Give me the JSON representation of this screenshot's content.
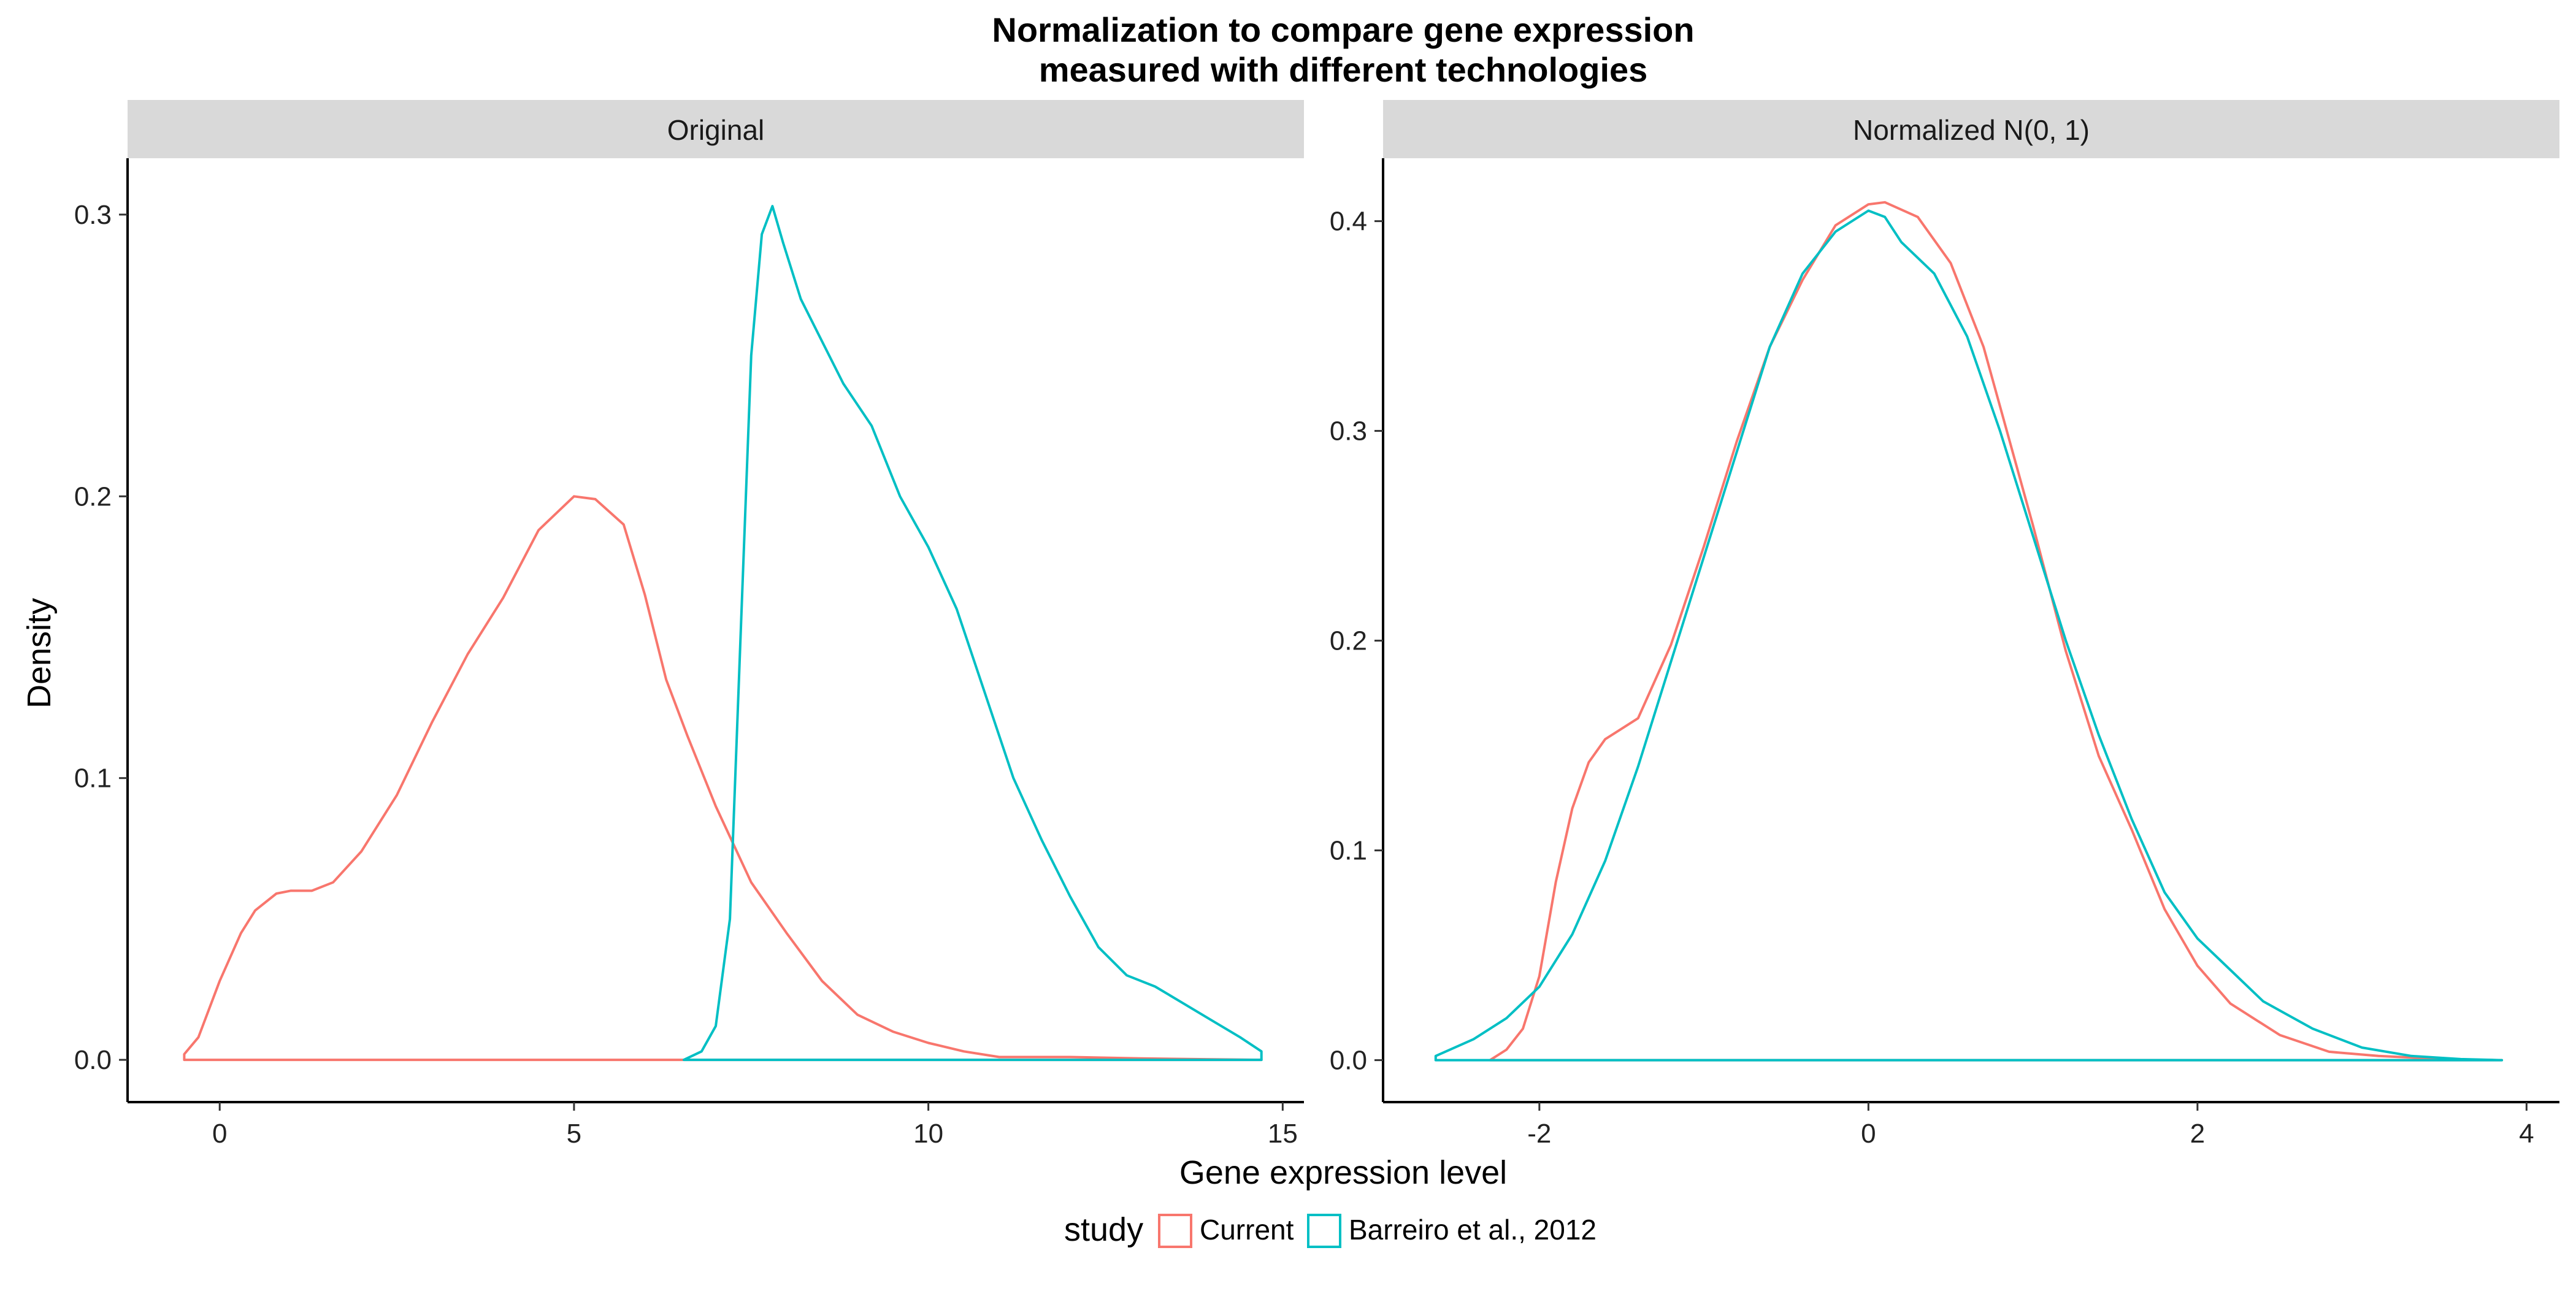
{
  "chart_data": {
    "type": "line",
    "title": "Normalization to compare gene expression",
    "title_line2": "measured with different technologies",
    "xlabel": "Gene expression level",
    "ylabel": "Density",
    "grid": false,
    "legend": {
      "placement": "bottom",
      "title": "study",
      "entries": [
        {
          "name": "Current",
          "color": "#F8766D"
        },
        {
          "name": "Barreiro et al., 2012",
          "color": "#00BFC4"
        }
      ]
    },
    "panels": [
      {
        "strip": "Original",
        "xlim": [
          -1.3,
          15.3
        ],
        "ylim": [
          -0.015,
          0.32
        ],
        "x_ticks": [
          0,
          5,
          10,
          15
        ],
        "x_tick_labels": [
          "0",
          "5",
          "10",
          "15"
        ],
        "y_ticks": [
          0,
          0.1,
          0.2,
          0.3
        ],
        "y_tick_labels": [
          "0.0",
          "0.1",
          "0.2",
          "0.3"
        ],
        "series": [
          {
            "name": "Current",
            "color": "#F8766D",
            "x": [
              -0.5,
              -0.3,
              0,
              0.3,
              0.5,
              0.8,
              1.0,
              1.3,
              1.6,
              2.0,
              2.5,
              3.0,
              3.5,
              4.0,
              4.5,
              5.0,
              5.3,
              5.7,
              6.0,
              6.3,
              6.6,
              7.0,
              7.5,
              8.0,
              8.5,
              9.0,
              9.5,
              10.0,
              10.5,
              11.0,
              11.5,
              12.0,
              13.0,
              14.0,
              14.7
            ],
            "y": [
              0.002,
              0.008,
              0.028,
              0.045,
              0.053,
              0.059,
              0.06,
              0.06,
              0.063,
              0.074,
              0.094,
              0.12,
              0.144,
              0.164,
              0.188,
              0.2,
              0.199,
              0.19,
              0.165,
              0.135,
              0.115,
              0.09,
              0.063,
              0.045,
              0.028,
              0.016,
              0.01,
              0.006,
              0.003,
              0.001,
              0.001,
              0.001,
              0.0005,
              0.0002,
              0.0
            ],
            "baseline": 0
          },
          {
            "name": "Barreiro et al., 2012",
            "color": "#00BFC4",
            "x": [
              6.55,
              6.8,
              7.0,
              7.2,
              7.35,
              7.5,
              7.65,
              7.8,
              7.95,
              8.2,
              8.5,
              8.8,
              9.2,
              9.6,
              10.0,
              10.4,
              10.8,
              11.2,
              11.6,
              12.0,
              12.4,
              12.8,
              13.2,
              13.6,
              14.0,
              14.4,
              14.7
            ],
            "y": [
              0.0,
              0.003,
              0.012,
              0.05,
              0.15,
              0.25,
              0.293,
              0.303,
              0.29,
              0.27,
              0.255,
              0.24,
              0.225,
              0.2,
              0.182,
              0.16,
              0.13,
              0.1,
              0.078,
              0.058,
              0.04,
              0.03,
              0.026,
              0.02,
              0.014,
              0.008,
              0.003
            ],
            "baseline": 0
          }
        ]
      },
      {
        "strip": "Normalized N(0, 1)",
        "xlim": [
          -2.95,
          4.2
        ],
        "ylim": [
          -0.02,
          0.43
        ],
        "x_ticks": [
          -2,
          0,
          2,
          4
        ],
        "x_tick_labels": [
          "-2",
          "0",
          "2",
          "4"
        ],
        "y_ticks": [
          0,
          0.1,
          0.2,
          0.3,
          0.4
        ],
        "y_tick_labels": [
          "0.0",
          "0.1",
          "0.2",
          "0.3",
          "0.4"
        ],
        "series": [
          {
            "name": "Current",
            "color": "#F8766D",
            "x": [
              -2.3,
              -2.2,
              -2.1,
              -2.0,
              -1.9,
              -1.8,
              -1.7,
              -1.6,
              -1.5,
              -1.4,
              -1.2,
              -1.0,
              -0.8,
              -0.6,
              -0.4,
              -0.2,
              0.0,
              0.1,
              0.3,
              0.5,
              0.7,
              1.0,
              1.2,
              1.4,
              1.6,
              1.8,
              2.0,
              2.2,
              2.5,
              2.8,
              3.1,
              3.5,
              3.85
            ],
            "y": [
              0.0,
              0.005,
              0.015,
              0.04,
              0.085,
              0.12,
              0.142,
              0.153,
              0.158,
              0.163,
              0.198,
              0.245,
              0.295,
              0.34,
              0.372,
              0.398,
              0.408,
              0.409,
              0.402,
              0.38,
              0.34,
              0.255,
              0.195,
              0.145,
              0.11,
              0.072,
              0.045,
              0.027,
              0.012,
              0.004,
              0.002,
              0.0005,
              0.0
            ],
            "baseline": 0
          },
          {
            "name": "Barreiro et al., 2012",
            "color": "#00BFC4",
            "x": [
              -2.63,
              -2.4,
              -2.2,
              -2.0,
              -1.8,
              -1.6,
              -1.4,
              -1.2,
              -1.0,
              -0.8,
              -0.6,
              -0.4,
              -0.2,
              0.0,
              0.1,
              0.2,
              0.4,
              0.6,
              0.8,
              1.0,
              1.2,
              1.4,
              1.6,
              1.8,
              2.0,
              2.2,
              2.4,
              2.7,
              3.0,
              3.3,
              3.6,
              3.85
            ],
            "y": [
              0.002,
              0.01,
              0.02,
              0.035,
              0.06,
              0.095,
              0.14,
              0.19,
              0.24,
              0.29,
              0.34,
              0.375,
              0.395,
              0.405,
              0.402,
              0.39,
              0.375,
              0.345,
              0.3,
              0.25,
              0.2,
              0.155,
              0.115,
              0.08,
              0.058,
              0.043,
              0.028,
              0.015,
              0.006,
              0.002,
              0.0005,
              0.0
            ],
            "baseline": 0
          }
        ]
      }
    ]
  }
}
